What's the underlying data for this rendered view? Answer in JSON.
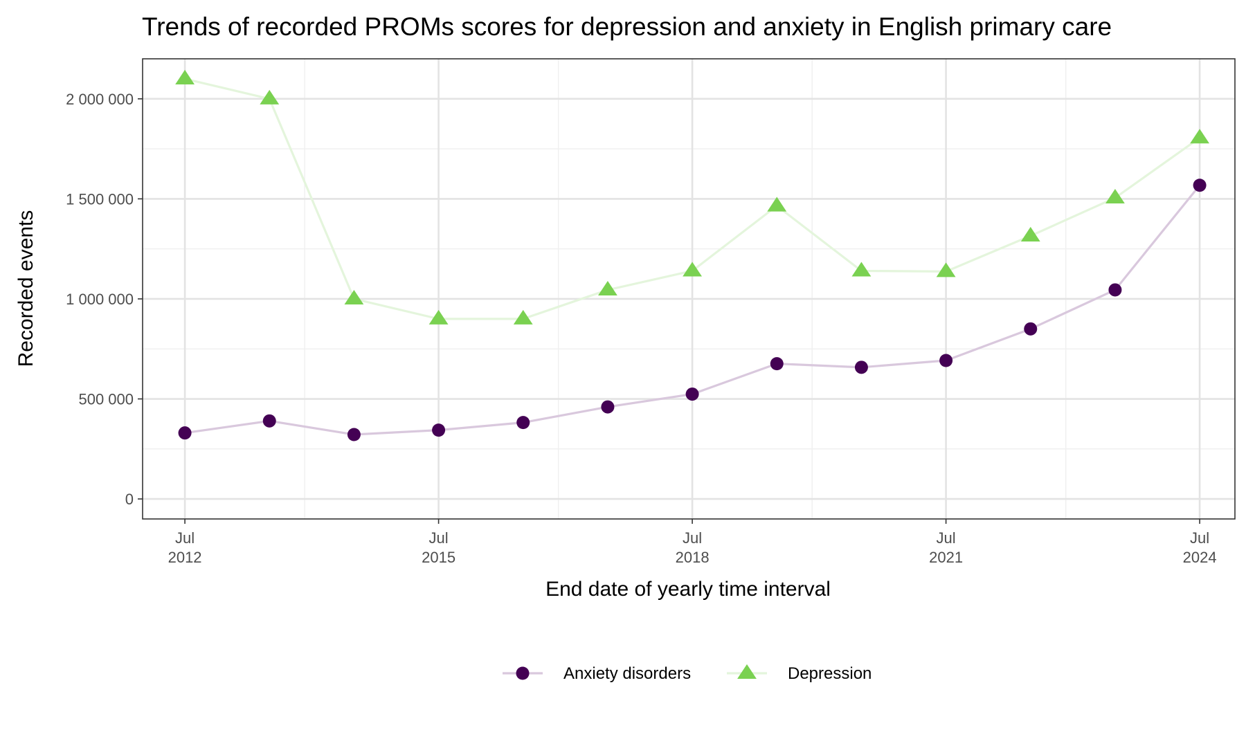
{
  "chart_data": {
    "type": "line",
    "title": "Trends of recorded PROMs scores for depression and anxiety in English primary care",
    "xlabel": "End date of yearly time interval",
    "ylabel": "Recorded events",
    "x": [
      "2012-07",
      "2013-07",
      "2014-07",
      "2015-07",
      "2016-07",
      "2017-07",
      "2018-07",
      "2019-07",
      "2020-07",
      "2021-07",
      "2022-07",
      "2023-07",
      "2024-07"
    ],
    "x_ticks": [
      {
        "date": "2012-07",
        "month": "Jul",
        "year": "2012"
      },
      {
        "date": "2015-07",
        "month": "Jul",
        "year": "2015"
      },
      {
        "date": "2018-07",
        "month": "Jul",
        "year": "2018"
      },
      {
        "date": "2021-07",
        "month": "Jul",
        "year": "2021"
      },
      {
        "date": "2024-07",
        "month": "Jul",
        "year": "2024"
      }
    ],
    "x_minor_ticks": [
      "2013-12",
      "2016-12",
      "2019-12",
      "2022-12"
    ],
    "xlim": [
      "2012-01",
      "2024-12"
    ],
    "y_ticks": [
      {
        "value": 0,
        "label": "0"
      },
      {
        "value": 500000,
        "label": "500 000"
      },
      {
        "value": 1000000,
        "label": "1 000 000"
      },
      {
        "value": 1500000,
        "label": "1 500 000"
      },
      {
        "value": 2000000,
        "label": "2 000 000"
      }
    ],
    "y_minor_ticks": [
      250000,
      750000,
      1250000,
      1750000
    ],
    "ylim": [
      -100000,
      2200000
    ],
    "grid": true,
    "legend_position": "bottom",
    "series": [
      {
        "name": "Anxiety disorders",
        "marker": "circle",
        "color": "#440154",
        "line_color": "#d9c8dd",
        "values": [
          330000,
          390000,
          322000,
          344000,
          382000,
          460000,
          524000,
          676000,
          658000,
          692000,
          850000,
          1045000,
          1568000
        ]
      },
      {
        "name": "Depression",
        "marker": "triangle",
        "color": "#7ad151",
        "line_color": "#e4f5dc",
        "values": [
          2100000,
          2000000,
          1000000,
          900000,
          900000,
          1045000,
          1140000,
          1465000,
          1140000,
          1137000,
          1315000,
          1505000,
          1805000
        ]
      }
    ]
  }
}
